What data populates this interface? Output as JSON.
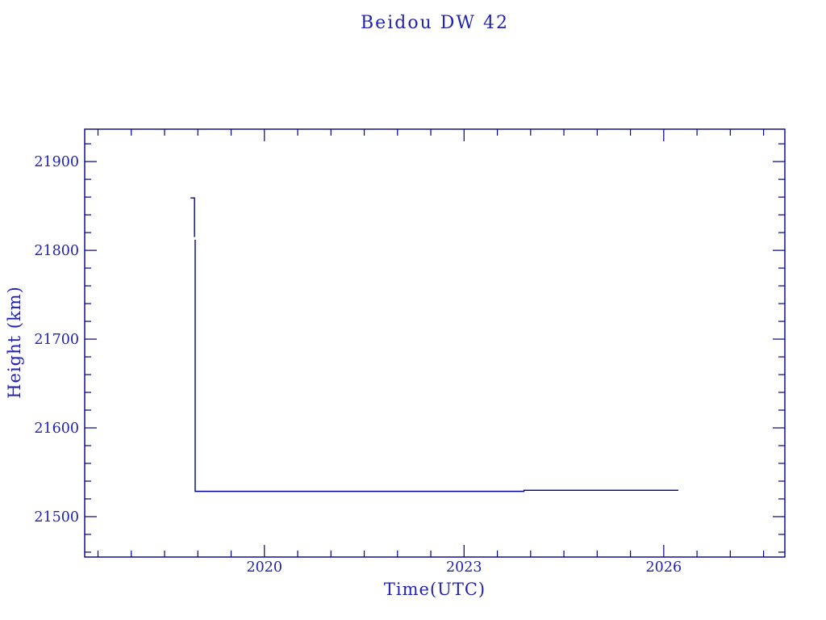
{
  "chart_data": {
    "type": "line",
    "title": "Beidou DW 42",
    "xlabel": "Time(UTC)",
    "ylabel": "Height (km)",
    "xlim": [
      2017.3,
      2027.82
    ],
    "ylim": [
      21454.5,
      21936.5
    ],
    "x_major_ticks": [
      2020,
      2023,
      2026
    ],
    "x_major_tick_labels": [
      "2020",
      "2023",
      "2026"
    ],
    "x_minor_step": 0.5,
    "y_major_ticks": [
      21500,
      21600,
      21700,
      21800,
      21900
    ],
    "y_major_tick_labels": [
      "21500",
      "21600",
      "21700",
      "21800",
      "21900"
    ],
    "y_minor_step": 20,
    "grid": false,
    "legend": null,
    "colors": {
      "line": "#00008b",
      "axis": "#00008b",
      "text": "#2222b2",
      "background": "#ffffff"
    },
    "series": [
      {
        "name": "height",
        "segments": [
          [
            [
              2018.89,
              21859
            ],
            [
              2018.95,
              21859
            ],
            [
              2018.95,
              21815
            ]
          ],
          [
            [
              2018.96,
              21812
            ],
            [
              2018.96,
              21528.5
            ],
            [
              2023.9,
              21528.5
            ],
            [
              2023.9,
              21529.7
            ],
            [
              2026.22,
              21529.7
            ]
          ]
        ]
      }
    ]
  }
}
